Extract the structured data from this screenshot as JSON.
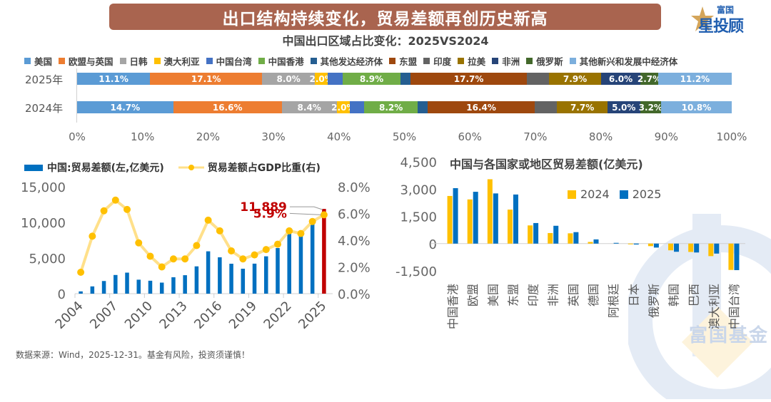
{
  "header": {
    "title": "出口结构持续变化，贸易差额再创历史新高",
    "subtitle": "中国出口区域占比变化：2025VS2024",
    "logo": {
      "line1": "富国",
      "line2": "星投顾",
      "icon": "star-icon"
    }
  },
  "footer": {
    "source": "数据来源：Wind，2025-12-31。基金有风险，投资须谨慎！"
  },
  "watermark": {
    "text": "富国基金"
  },
  "colors": {
    "bar_blue": "#0070c0",
    "highlight_red": "#c00000",
    "line_yellow": "#ffe08a",
    "marker_yellow": "#ffc000",
    "y2024": "#ffc000",
    "y2025": "#0070c0"
  },
  "chart_data": [
    {
      "type": "bar",
      "orientation": "horizontal-stacked-100",
      "title": "中国出口区域占比变化：2025VS2024",
      "categories": [
        "2025年",
        "2024年"
      ],
      "xlim": [
        0,
        100
      ],
      "x_ticks": [
        "0%",
        "10%",
        "20%",
        "30%",
        "40%",
        "50%",
        "60%",
        "70%",
        "80%",
        "90%",
        "100%"
      ],
      "legend_position": "top",
      "series": [
        {
          "name": "美国",
          "color": "#5b9bd5",
          "values": [
            11.1,
            14.7
          ],
          "labels": [
            "11.1%",
            "14.7%"
          ]
        },
        {
          "name": "欧盟与英国",
          "color": "#ed7d31",
          "values": [
            17.1,
            16.6
          ],
          "labels": [
            "17.1%",
            "16.6%"
          ]
        },
        {
          "name": "日韩",
          "color": "#a5a5a5",
          "values": [
            8.0,
            8.4
          ],
          "labels": [
            "8.0%",
            "8.4%"
          ]
        },
        {
          "name": "澳大利亚",
          "color": "#ffc000",
          "values": [
            2.0,
            2.0
          ],
          "labels": [
            "2.0%",
            "2.0%"
          ]
        },
        {
          "name": "中国台湾",
          "color": "#4472c4",
          "values": [
            2.2,
            2.2
          ],
          "labels": [
            "",
            ""
          ]
        },
        {
          "name": "中国香港",
          "color": "#70ad47",
          "values": [
            8.9,
            8.2
          ],
          "labels": [
            "8.9%",
            "8.2%"
          ]
        },
        {
          "name": "其他发达经济体",
          "color": "#255e91",
          "values": [
            1.5,
            1.5
          ],
          "labels": [
            "",
            ""
          ]
        },
        {
          "name": "东盟",
          "color": "#9e480e",
          "values": [
            17.7,
            16.4
          ],
          "labels": [
            "17.7%",
            "16.4%"
          ]
        },
        {
          "name": "印度",
          "color": "#636363",
          "values": [
            3.4,
            3.4
          ],
          "labels": [
            "",
            ""
          ]
        },
        {
          "name": "拉美",
          "color": "#997300",
          "values": [
            7.9,
            7.7
          ],
          "labels": [
            "7.9%",
            "7.7%"
          ]
        },
        {
          "name": "非洲",
          "color": "#264478",
          "values": [
            6.0,
            5.0
          ],
          "labels": [
            "6.0%",
            "5.0%"
          ]
        },
        {
          "name": "俄罗斯",
          "color": "#43682b",
          "values": [
            2.7,
            3.2
          ],
          "labels": [
            "2.7%",
            "3.2%"
          ]
        },
        {
          "name": "其他新兴和发展中经济体",
          "color": "#7cafdd",
          "values": [
            11.2,
            10.8
          ],
          "labels": [
            "11.2%",
            "10.8%"
          ]
        }
      ]
    },
    {
      "type": "bar+line",
      "title": "",
      "legend": [
        "中国:贸易差额(左,亿美元)",
        "贸易差额占GDP比重(右)"
      ],
      "legend_position": "top",
      "x": [
        2004,
        2005,
        2006,
        2007,
        2008,
        2009,
        2010,
        2011,
        2012,
        2013,
        2014,
        2015,
        2016,
        2017,
        2018,
        2019,
        2020,
        2021,
        2022,
        2023,
        2024,
        2025
      ],
      "x_tick_labels": [
        "2004",
        "2007",
        "2010",
        "2013",
        "2016",
        "2019",
        "2022",
        "2025"
      ],
      "y_left": {
        "ylim": [
          0,
          15000
        ],
        "ticks": [
          "0",
          "5,000",
          "10,000",
          "15,000"
        ]
      },
      "y_right": {
        "ylim": [
          0,
          8
        ],
        "ticks": [
          "0.0%",
          "2.0%",
          "4.0%",
          "6.0%",
          "8.0%"
        ]
      },
      "series": [
        {
          "name": "中国:贸易差额(左,亿美元)",
          "type": "bar",
          "axis": "left",
          "values": [
            320,
            1020,
            1775,
            2620,
            2950,
            1960,
            1815,
            1550,
            2300,
            2590,
            3830,
            5940,
            5100,
            4200,
            3500,
            4210,
            5240,
            6400,
            8400,
            8100,
            9800,
            11889
          ]
        },
        {
          "name": "贸易差额占GDP比重(右)",
          "type": "line",
          "axis": "right",
          "values": [
            1.6,
            4.3,
            6.2,
            7.0,
            6.3,
            3.8,
            2.8,
            2.0,
            2.6,
            2.6,
            3.6,
            5.5,
            4.7,
            3.2,
            2.6,
            2.9,
            3.3,
            3.7,
            4.7,
            4.5,
            5.4,
            5.9
          ]
        }
      ],
      "annotations": [
        {
          "text": "11,889",
          "target": "bar 2025",
          "color": "#c00000"
        },
        {
          "text": "5.9%",
          "target": "line 2025",
          "color": "#c00000"
        }
      ]
    },
    {
      "type": "bar",
      "title": "中国与各国家或地区贸易差额(亿美元)",
      "categories": [
        "中国香港",
        "欧盟",
        "美国",
        "东盟",
        "印度",
        "非洲",
        "英国",
        "德国",
        "阿根廷",
        "日本",
        "俄罗斯",
        "韩国",
        "巴西",
        "澳大利亚",
        "中国台湾"
      ],
      "ylim": [
        -1500,
        4500
      ],
      "y_ticks": [
        "-1,500",
        "0",
        "1,500",
        "3,000",
        "4,500"
      ],
      "legend_position": "top-right",
      "series": [
        {
          "name": "2024",
          "color": "#ffc000",
          "values": [
            2620,
            2430,
            3540,
            1870,
            1000,
            580,
            565,
            90,
            0,
            -40,
            -140,
            -370,
            -460,
            -690,
            -1450
          ]
        },
        {
          "name": "2025",
          "color": "#0070c0",
          "values": [
            3050,
            2850,
            2760,
            2700,
            1130,
            980,
            630,
            230,
            40,
            -50,
            -220,
            -450,
            -490,
            -550,
            -1460
          ]
        }
      ]
    }
  ]
}
